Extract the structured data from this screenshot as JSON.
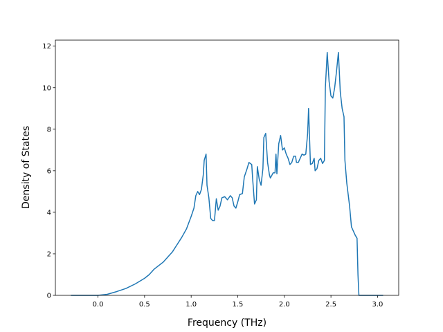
{
  "chart_data": {
    "type": "line",
    "xlabel": "Frequency (THz)",
    "ylabel": "Density of States",
    "color": "#1f77b4",
    "x": [
      -0.29,
      0,
      0.1,
      0.2,
      0.3,
      0.4,
      0.5,
      0.55,
      0.6,
      0.7,
      0.8,
      0.9,
      0.95,
      1.0,
      1.03,
      1.05,
      1.07,
      1.09,
      1.11,
      1.13,
      1.14,
      1.16,
      1.17,
      1.19,
      1.21,
      1.23,
      1.25,
      1.27,
      1.29,
      1.31,
      1.33,
      1.36,
      1.39,
      1.42,
      1.44,
      1.46,
      1.48,
      1.5,
      1.52,
      1.55,
      1.57,
      1.6,
      1.62,
      1.65,
      1.66,
      1.68,
      1.7,
      1.71,
      1.73,
      1.75,
      1.77,
      1.78,
      1.8,
      1.82,
      1.84,
      1.85,
      1.88,
      1.9,
      1.91,
      1.92,
      1.94,
      1.96,
      1.98,
      2.0,
      2.02,
      2.04,
      2.06,
      2.08,
      2.1,
      2.12,
      2.13,
      2.15,
      2.17,
      2.19,
      2.21,
      2.23,
      2.25,
      2.26,
      2.28,
      2.3,
      2.32,
      2.33,
      2.35,
      2.37,
      2.39,
      2.41,
      2.43,
      2.44,
      2.46,
      2.48,
      2.5,
      2.52,
      2.54,
      2.56,
      2.58,
      2.6,
      2.62,
      2.64,
      2.65,
      2.67,
      2.7,
      2.72,
      2.74,
      2.76,
      2.78,
      2.79,
      2.8,
      3.06
    ],
    "values": [
      0,
      0,
      0.05,
      0.18,
      0.33,
      0.55,
      0.82,
      1.0,
      1.25,
      1.6,
      2.1,
      2.8,
      3.2,
      3.8,
      4.2,
      4.8,
      5.0,
      4.85,
      5.1,
      5.8,
      6.5,
      6.8,
      5.3,
      4.7,
      3.7,
      3.6,
      3.6,
      4.65,
      4.1,
      4.3,
      4.7,
      4.75,
      4.6,
      4.8,
      4.7,
      4.3,
      4.2,
      4.5,
      4.85,
      4.9,
      5.7,
      6.1,
      6.4,
      6.3,
      5.6,
      4.4,
      4.6,
      6.2,
      5.6,
      5.3,
      6.1,
      7.6,
      7.8,
      6.4,
      5.8,
      5.65,
      5.9,
      5.9,
      6.8,
      5.85,
      7.3,
      7.7,
      7.0,
      7.1,
      6.8,
      6.6,
      6.3,
      6.4,
      6.7,
      6.7,
      6.4,
      6.4,
      6.6,
      6.8,
      6.75,
      6.8,
      7.8,
      9.0,
      6.3,
      6.35,
      6.6,
      6.0,
      6.1,
      6.5,
      6.6,
      6.35,
      6.5,
      10.0,
      11.7,
      10.3,
      9.6,
      9.5,
      10.0,
      10.8,
      11.7,
      9.8,
      9.0,
      8.6,
      6.5,
      5.4,
      4.3,
      3.3,
      3.1,
      2.9,
      2.75,
      1.0,
      0,
      0
    ],
    "xlim": [
      -0.457,
      3.227
    ],
    "ylim": [
      0,
      12.29
    ],
    "xticks": [
      {
        "value": 0,
        "label": "0.0"
      },
      0.5,
      {
        "value": 1,
        "label": "1.0"
      },
      1.5,
      {
        "value": 2,
        "label": "2.0"
      },
      2.5,
      {
        "value": 3,
        "label": "3.0"
      }
    ],
    "yticks": [
      0,
      2,
      4,
      6,
      8,
      10,
      12
    ]
  }
}
